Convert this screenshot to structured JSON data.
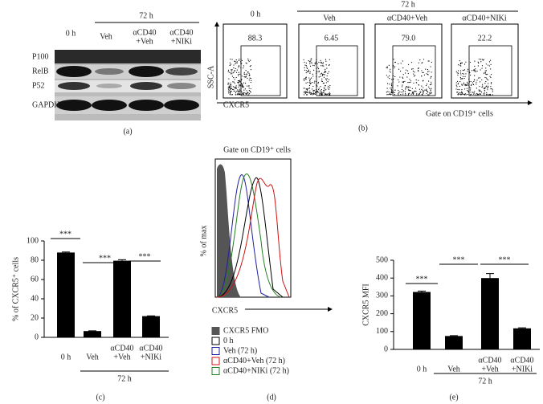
{
  "panel_a": {
    "headers": [
      "0 h",
      "72 h"
    ],
    "conditions": [
      [
        "Veh"
      ],
      [
        "αCD40",
        "+Veh"
      ],
      [
        "αCD40",
        "+NIKi"
      ]
    ],
    "rows": [
      "P100",
      "RelB",
      "P52",
      "GAPDH"
    ],
    "label": "(a)"
  },
  "panel_b": {
    "headers": [
      "0 h",
      "72 h"
    ],
    "conditions": [
      "Veh",
      "αCD40+Veh",
      "αCD40+NIKi"
    ],
    "gates": [
      "88.3",
      "6.45",
      "79.0",
      "22.2"
    ],
    "y_axis": "SSC-A",
    "x_axis": "CXCR5",
    "gate_note": "Gate on CD19⁺ cells",
    "label": "(b)"
  },
  "panel_d": {
    "title": "Gate on CD19⁺ cells",
    "ylabel": "% of max",
    "xlabel": "CXCR5",
    "legend": [
      {
        "name": "CXCR5 FMO",
        "color": "#555555"
      },
      {
        "name": "0 h",
        "color": "#000000"
      },
      {
        "name": "Veh (72 h)",
        "color": "#1f1fa0"
      },
      {
        "name": "αCD40+Veh (72 h)",
        "color": "#d01010"
      },
      {
        "name": "αCD40+NIKi (72 h)",
        "color": "#208020"
      }
    ],
    "label": "(d)"
  },
  "chart_data": [
    {
      "type": "bar",
      "ylabel": "% of CXCR5⁺ cells",
      "categories": [
        [
          "0 h"
        ],
        [
          "Veh"
        ],
        [
          "αCD40",
          "+Veh"
        ],
        [
          "αCD40",
          "+NIKi"
        ]
      ],
      "values": [
        88,
        6.5,
        79.5,
        22
      ],
      "errors": [
        0.5,
        0.3,
        1,
        0.3
      ],
      "color": "#000000",
      "ylim": [
        0,
        100
      ],
      "yticks": [
        0,
        20,
        40,
        60,
        80,
        100
      ],
      "group": "72 h",
      "annotations": [
        "***",
        "***",
        "***"
      ],
      "label": "(c)"
    },
    {
      "type": "bar",
      "ylabel": "CXCR5 MFI",
      "categories": [
        [
          "0 h"
        ],
        [
          "Veh"
        ],
        [
          "αCD40",
          "+Veh"
        ],
        [
          "αCD40",
          "+NIKi"
        ]
      ],
      "values": [
        322,
        75,
        400,
        118
      ],
      "errors": [
        5,
        2,
        25,
        3
      ],
      "color": "#000000",
      "ylim": [
        0,
        500
      ],
      "yticks": [
        0,
        100,
        200,
        300,
        400,
        500
      ],
      "group": "72 h",
      "annotations": [
        "***",
        "***",
        "***"
      ],
      "label": "(e)"
    }
  ]
}
